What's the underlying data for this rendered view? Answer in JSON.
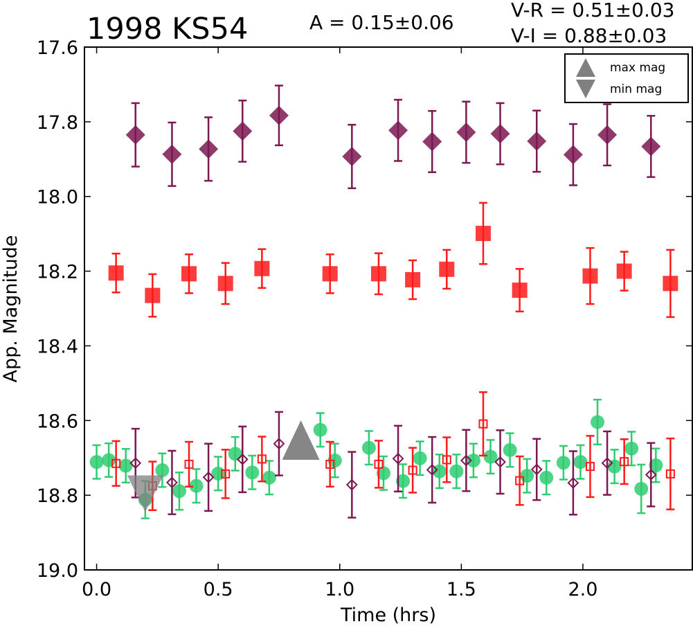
{
  "chart_data": {
    "type": "scatter",
    "title": "1998 KS54",
    "annotations": {
      "amplitude": "A  = 0.15±0.06",
      "color_vr": "V-R = 0.51±0.03",
      "color_vi": "V-I  = 0.88±0.03"
    },
    "xlabel": "Time (hrs)",
    "ylabel": "App. Magnitude",
    "xlim": [
      -0.05,
      2.45
    ],
    "ylim": [
      19.0,
      17.6
    ],
    "y_inverted": true,
    "xticks": [
      "0.0",
      "0.5",
      "1.0",
      "1.5",
      "2.0"
    ],
    "yticks": [
      "17.6",
      "17.8",
      "18.0",
      "18.2",
      "18.4",
      "18.6",
      "18.8",
      "19.0"
    ],
    "legend": {
      "placement": "top-right",
      "entries": [
        {
          "label": "max mag",
          "marker": "triangle-up",
          "color": "#808080"
        },
        {
          "label": "min mag",
          "marker": "triangle-down",
          "color": "#808080"
        }
      ]
    },
    "colors": {
      "I": "#7B1850",
      "R": "#FF1A1A",
      "V": "#2ECC71",
      "extrema": "#808080"
    },
    "series": [
      {
        "band": "I",
        "marker": "diamond",
        "filled": true,
        "x": [
          0.16,
          0.31,
          0.46,
          0.6,
          0.75,
          1.05,
          1.24,
          1.38,
          1.52,
          1.66,
          1.81,
          1.96,
          2.1,
          2.28
        ],
        "y": [
          17.835,
          17.887,
          17.873,
          17.825,
          17.783,
          17.893,
          17.823,
          17.853,
          17.828,
          17.832,
          17.852,
          17.888,
          17.835,
          17.866
        ],
        "err": [
          0.085,
          0.085,
          0.085,
          0.082,
          0.08,
          0.085,
          0.082,
          0.082,
          0.082,
          0.082,
          0.082,
          0.082,
          0.082,
          0.082
        ]
      },
      {
        "band": "R",
        "marker": "square",
        "filled": true,
        "x": [
          0.08,
          0.23,
          0.38,
          0.53,
          0.68,
          0.96,
          1.16,
          1.3,
          1.44,
          1.59,
          1.74,
          2.03,
          2.17,
          2.36
        ],
        "y": [
          18.205,
          18.265,
          18.207,
          18.233,
          18.193,
          18.207,
          18.207,
          18.223,
          18.195,
          18.099,
          18.251,
          18.213,
          18.2,
          18.233
        ],
        "err": [
          0.052,
          0.057,
          0.052,
          0.055,
          0.052,
          0.052,
          0.055,
          0.052,
          0.052,
          0.082,
          0.057,
          0.075,
          0.052,
          0.09
        ]
      },
      {
        "band": "V",
        "marker": "circle",
        "filled": true,
        "x": [
          0.0,
          0.05,
          0.12,
          0.2,
          0.27,
          0.34,
          0.41,
          0.5,
          0.57,
          0.64,
          0.71,
          0.92,
          0.98,
          1.12,
          1.18,
          1.26,
          1.33,
          1.41,
          1.48,
          1.55,
          1.62,
          1.7,
          1.77,
          1.85,
          1.92,
          1.99,
          2.06,
          2.13,
          2.2,
          2.24,
          2.3
        ],
        "y": [
          18.711,
          18.706,
          18.721,
          18.812,
          18.733,
          18.789,
          18.775,
          18.742,
          18.689,
          18.739,
          18.753,
          18.625,
          18.707,
          18.673,
          18.741,
          18.762,
          18.701,
          18.736,
          18.736,
          18.707,
          18.697,
          18.679,
          18.748,
          18.753,
          18.713,
          18.711,
          18.604,
          18.723,
          18.675,
          18.783,
          18.72
        ],
        "err": [
          0.045,
          0.045,
          0.045,
          0.05,
          0.045,
          0.05,
          0.045,
          0.045,
          0.045,
          0.045,
          0.045,
          0.045,
          0.045,
          0.045,
          0.045,
          0.045,
          0.045,
          0.045,
          0.045,
          0.045,
          0.045,
          0.045,
          0.045,
          0.045,
          0.045,
          0.045,
          0.06,
          0.045,
          0.045,
          0.065,
          0.045
        ]
      },
      {
        "band": "I (shifted)",
        "marker": "diamond",
        "filled": false,
        "x": [
          0.16,
          0.31,
          0.46,
          0.6,
          0.75,
          1.05,
          1.24,
          1.38,
          1.52,
          1.66,
          1.81,
          1.96,
          2.1,
          2.28
        ],
        "y": [
          18.714,
          18.766,
          18.752,
          18.704,
          18.662,
          18.772,
          18.702,
          18.732,
          18.707,
          18.711,
          18.731,
          18.767,
          18.714,
          18.745
        ],
        "err": [
          0.092,
          0.085,
          0.09,
          0.088,
          0.085,
          0.088,
          0.088,
          0.088,
          0.082,
          0.085,
          0.082,
          0.085,
          0.085,
          0.085
        ]
      },
      {
        "band": "R (shifted)",
        "marker": "square",
        "filled": false,
        "x": [
          0.08,
          0.23,
          0.38,
          0.53,
          0.68,
          0.96,
          1.16,
          1.3,
          1.44,
          1.59,
          1.74,
          2.03,
          2.17,
          2.36
        ],
        "y": [
          18.715,
          18.775,
          18.717,
          18.743,
          18.703,
          18.717,
          18.717,
          18.733,
          18.705,
          18.609,
          18.761,
          18.723,
          18.71,
          18.743
        ],
        "err": [
          0.06,
          0.065,
          0.06,
          0.065,
          0.06,
          0.06,
          0.063,
          0.06,
          0.06,
          0.085,
          0.065,
          0.082,
          0.06,
          0.095
        ]
      }
    ],
    "extrema": [
      {
        "label": "max mag",
        "marker": "triangle-up",
        "x": 0.84,
        "y": 18.655
      },
      {
        "label": "min mag",
        "marker": "triangle-down",
        "x": 0.2,
        "y": 18.795
      }
    ]
  }
}
